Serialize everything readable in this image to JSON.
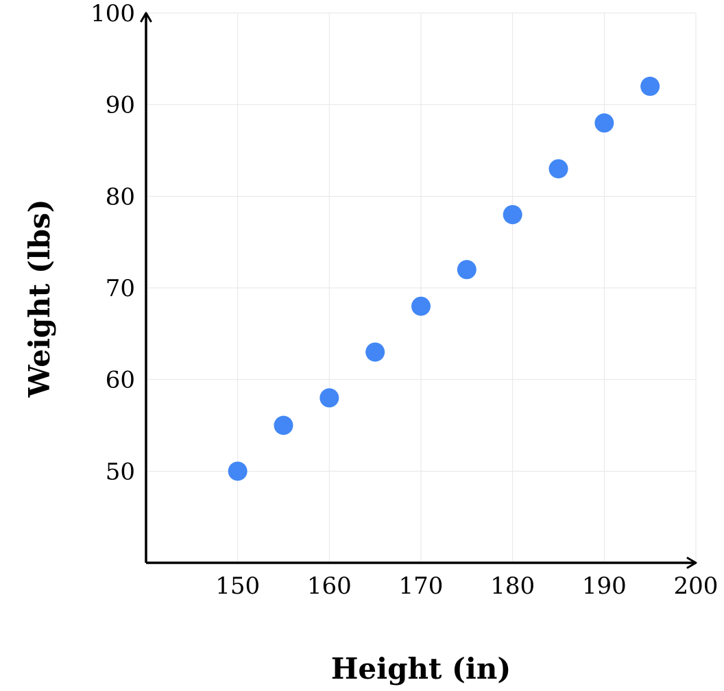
{
  "chart_data": {
    "type": "scatter",
    "title": "",
    "xlabel": "Height (in)",
    "ylabel": "Weight (lbs)",
    "xlim": [
      140,
      200
    ],
    "ylim": [
      40,
      100
    ],
    "x_ticks": [
      150,
      160,
      170,
      180,
      190,
      200
    ],
    "y_ticks": [
      50,
      60,
      70,
      80,
      90,
      100
    ],
    "x_tick_labels": [
      "150",
      "160",
      "170",
      "180",
      "190",
      "200"
    ],
    "y_tick_labels": [
      "50",
      "60",
      "70",
      "80",
      "90",
      "100"
    ],
    "grid": true,
    "legend": "none",
    "series": [
      {
        "color": "#4287f5",
        "points": [
          {
            "x": 150,
            "y": 50
          },
          {
            "x": 155,
            "y": 55
          },
          {
            "x": 160,
            "y": 58
          },
          {
            "x": 165,
            "y": 63
          },
          {
            "x": 170,
            "y": 68
          },
          {
            "x": 175,
            "y": 72
          },
          {
            "x": 180,
            "y": 78
          },
          {
            "x": 185,
            "y": 83
          },
          {
            "x": 190,
            "y": 88
          },
          {
            "x": 195,
            "y": 92
          }
        ]
      }
    ]
  }
}
